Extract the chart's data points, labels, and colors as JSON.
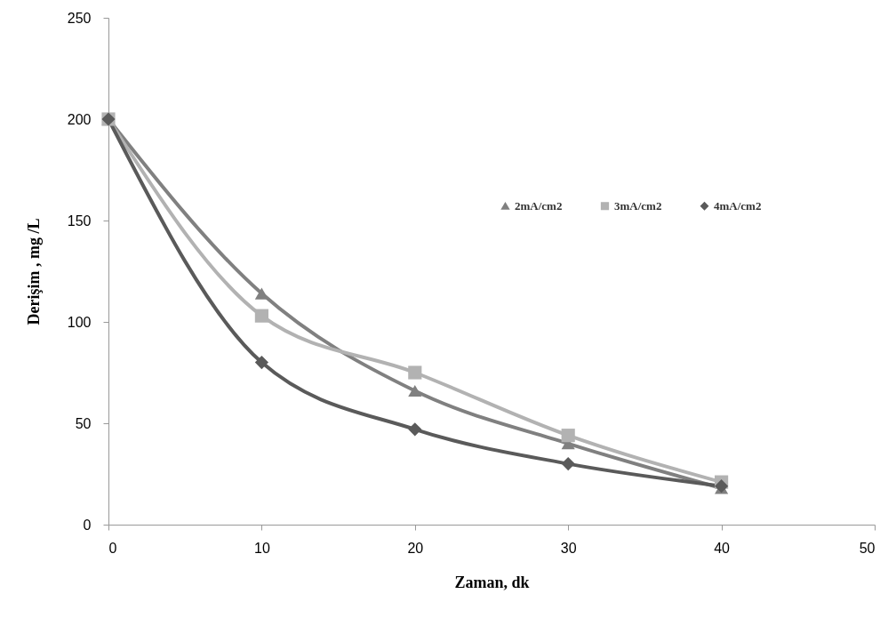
{
  "chart_data": {
    "type": "line",
    "xlabel": "Zaman, dk",
    "ylabel": "Derişim , mg /L",
    "x": [
      0,
      10,
      20,
      30,
      40
    ],
    "series": [
      {
        "name": "2mA/cm2",
        "color": "#808080",
        "marker": "triangle",
        "values": [
          200,
          114,
          66,
          40,
          18
        ]
      },
      {
        "name": "3mA/cm2",
        "color": "#b2b2b2",
        "marker": "square",
        "values": [
          200,
          103,
          75,
          44,
          21
        ]
      },
      {
        "name": "4mA/cm2",
        "color": "#5a5a5a",
        "marker": "diamond",
        "values": [
          200,
          80,
          47,
          30,
          19
        ]
      }
    ],
    "xlim": [
      0,
      50
    ],
    "xticks": [
      0,
      10,
      20,
      30,
      40,
      50
    ],
    "ylim": [
      0,
      250
    ],
    "yticks": [
      0,
      50,
      100,
      150,
      200,
      250
    ],
    "grid": false,
    "legend": "top right",
    "line_style": "solid"
  }
}
